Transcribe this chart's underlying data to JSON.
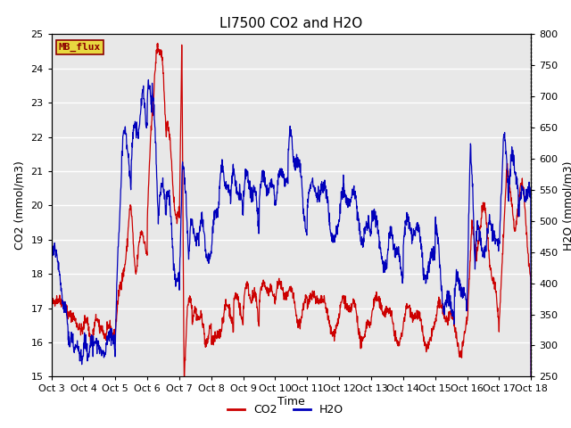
{
  "title": "LI7500 CO2 and H2O",
  "xlabel": "Time",
  "ylabel_left": "CO2 (mmol/m3)",
  "ylabel_right": "H2O (mmol/m3)",
  "ylim_left": [
    15.0,
    25.0
  ],
  "ylim_right": [
    250,
    800
  ],
  "yticks_left": [
    15.0,
    16.0,
    17.0,
    18.0,
    19.0,
    20.0,
    21.0,
    22.0,
    23.0,
    24.0,
    25.0
  ],
  "yticks_right": [
    250,
    300,
    350,
    400,
    450,
    500,
    550,
    600,
    650,
    700,
    750,
    800
  ],
  "xtick_labels": [
    "Oct 3",
    "Oct 4",
    "Oct 5",
    "Oct 6",
    "Oct 7",
    "Oct 8",
    "Oct 9",
    "Oct 10",
    "Oct 11",
    "Oct 12",
    "Oct 13",
    "Oct 14",
    "Oct 15",
    "Oct 16",
    "Oct 17",
    "Oct 18"
  ],
  "co2_color": "#cc0000",
  "h2o_color": "#0000bb",
  "legend_label_co2": "CO2",
  "legend_label_h2o": "H2O",
  "watermark_text": "MB_flux",
  "watermark_color": "#8B0000",
  "watermark_bg": "#e8d840",
  "background_color": "#e8e8e8",
  "fig_bg_color": "#ffffff",
  "grid_color": "#ffffff",
  "linewidth": 0.9,
  "title_fontsize": 11,
  "axis_label_fontsize": 9,
  "tick_fontsize": 8
}
